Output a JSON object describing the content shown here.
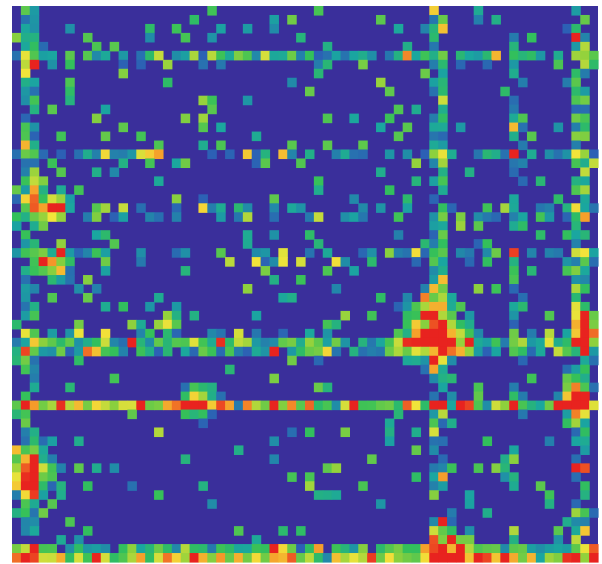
{
  "chart_data": {
    "type": "heatmap",
    "title": "",
    "xlabel": "",
    "ylabel": "",
    "grid": false,
    "legend": "none",
    "colormap": {
      "stops": [
        {
          "value": 0.0,
          "color": "#3a2f9b"
        },
        {
          "value": 0.3,
          "color": "#2f55b8"
        },
        {
          "value": 0.45,
          "color": "#1aa6a0"
        },
        {
          "value": 0.55,
          "color": "#33c05a"
        },
        {
          "value": 0.68,
          "color": "#8fd13c"
        },
        {
          "value": 0.8,
          "color": "#f2e43a"
        },
        {
          "value": 0.9,
          "color": "#f59a2a"
        },
        {
          "value": 1.0,
          "color": "#e8231f"
        }
      ]
    },
    "grid_size": {
      "rows": 62,
      "cols": 66
    },
    "features": {
      "horizontal_bands": [
        {
          "row_fraction": 0.09,
          "intensity": 0.35,
          "width": 0.02
        },
        {
          "row_fraction": 0.27,
          "intensity": 0.3,
          "width": 0.015
        },
        {
          "row_fraction": 0.37,
          "intensity": 0.4,
          "width": 0.015
        },
        {
          "row_fraction": 0.45,
          "intensity": 0.35,
          "width": 0.015
        },
        {
          "row_fraction": 0.61,
          "intensity": 0.55,
          "width": 0.03
        },
        {
          "row_fraction": 0.72,
          "intensity": 0.8,
          "width": 0.012
        },
        {
          "row_fraction": 0.99,
          "intensity": 0.75,
          "width": 0.03
        }
      ],
      "vertical_bands": [
        {
          "col_fraction": 0.03,
          "intensity": 0.55,
          "width": 0.025
        },
        {
          "col_fraction": 0.73,
          "intensity": 0.55,
          "width": 0.02
        },
        {
          "col_fraction": 0.86,
          "intensity": 0.4,
          "width": 0.015
        },
        {
          "col_fraction": 0.97,
          "intensity": 0.6,
          "width": 0.025
        }
      ],
      "hotspots": [
        {
          "x": 0.72,
          "y": 0.58,
          "intensity": 1.0,
          "radius": 0.04
        },
        {
          "x": 0.065,
          "y": 0.36,
          "intensity": 0.85,
          "radius": 0.02
        },
        {
          "x": 0.03,
          "y": 0.84,
          "intensity": 0.95,
          "radius": 0.03
        },
        {
          "x": 0.96,
          "y": 0.71,
          "intensity": 0.95,
          "radius": 0.02
        },
        {
          "x": 0.75,
          "y": 0.985,
          "intensity": 0.95,
          "radius": 0.03
        },
        {
          "x": 0.27,
          "y": 0.57,
          "intensity": 0.85,
          "radius": 0.012
        },
        {
          "x": 0.32,
          "y": 0.71,
          "intensity": 0.85,
          "radius": 0.02
        },
        {
          "x": 0.075,
          "y": 0.47,
          "intensity": 0.8,
          "radius": 0.02
        },
        {
          "x": 0.98,
          "y": 0.58,
          "intensity": 0.9,
          "radius": 0.02
        }
      ]
    }
  }
}
